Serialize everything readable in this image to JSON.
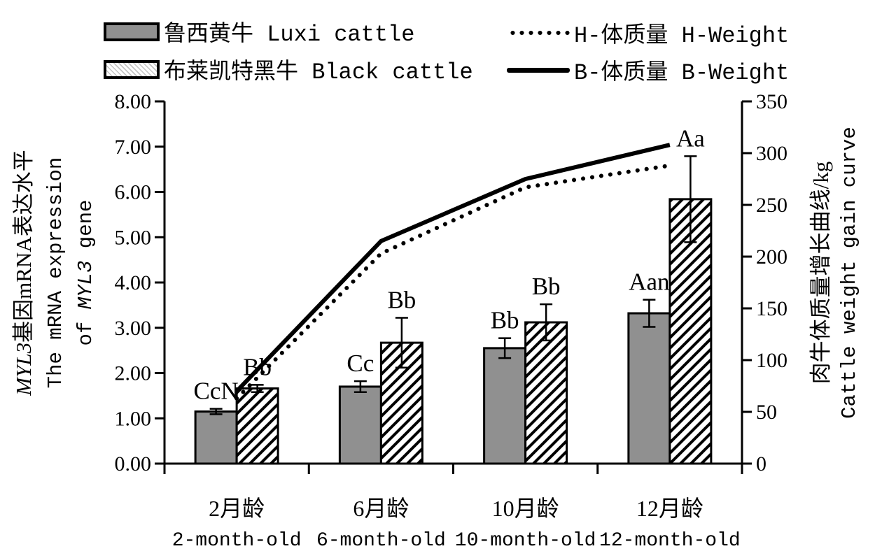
{
  "legend": {
    "items": [
      {
        "id": "luxi",
        "swatch": "gray-bar",
        "label": "鲁西黄牛 Luxi cattle"
      },
      {
        "id": "black",
        "swatch": "hatched-bar",
        "label": "布莱凯特黑牛 Black cattle"
      },
      {
        "id": "hweight",
        "swatch": "dotted-line",
        "label": "H-体质量 H-Weight"
      },
      {
        "id": "bweight",
        "swatch": "solid-line",
        "label": "B-体质量 B-Weight"
      }
    ]
  },
  "chart_data": {
    "type": "combo-bar-line",
    "categories_cn": [
      "2月龄",
      "6月龄",
      "10月龄",
      "12月龄"
    ],
    "categories_en": [
      "2-month-old",
      "6-month-old",
      "10-month-old",
      "12-month-old"
    ],
    "bar_series": [
      {
        "name": "鲁西黄牛 Luxi cattle",
        "style": "gray",
        "values": [
          1.15,
          1.7,
          2.55,
          3.32
        ],
        "errors": [
          0.06,
          0.12,
          0.22,
          0.3
        ],
        "annotations": [
          "CcN",
          "Cc",
          "Bb",
          "Aan"
        ]
      },
      {
        "name": "布莱凯特黑牛 Black cattle",
        "style": "hatched",
        "values": [
          1.66,
          2.67,
          3.12,
          5.84
        ],
        "errors": [
          0.08,
          0.55,
          0.4,
          0.95
        ],
        "annotations": [
          "Bb",
          "Bb",
          "Bb",
          "Aa"
        ]
      }
    ],
    "line_series": [
      {
        "name": "H-体质量 H-Weight",
        "style": "dotted",
        "axis": "right",
        "values": [
          63,
          203,
          267,
          288
        ]
      },
      {
        "name": "B-体质量 B-Weight",
        "style": "solid",
        "axis": "right",
        "values": [
          70,
          215,
          275,
          308
        ]
      }
    ],
    "left_axis": {
      "min": 0,
      "max": 8,
      "step": 1,
      "tick_labels": [
        "0.00",
        "1.00",
        "2.00",
        "3.00",
        "4.00",
        "5.00",
        "6.00",
        "7.00",
        "8.00"
      ],
      "title_lines": [
        "MYL3基因mRNA表达水平",
        "The mRNA expression",
        "of MYL3 gene"
      ],
      "italic_token": "MYL3"
    },
    "right_axis": {
      "min": 0,
      "max": 350,
      "step": 50,
      "tick_labels": [
        "0",
        "50",
        "100",
        "150",
        "200",
        "250",
        "300",
        "350"
      ],
      "title_lines": [
        "肉牛体质量增长曲线/kg",
        "Cattle weight gain curve"
      ]
    },
    "grid": false,
    "legend_position": "top",
    "colors": {
      "bar_gray": "#909090",
      "ink": "#000000",
      "background": "#ffffff"
    }
  }
}
